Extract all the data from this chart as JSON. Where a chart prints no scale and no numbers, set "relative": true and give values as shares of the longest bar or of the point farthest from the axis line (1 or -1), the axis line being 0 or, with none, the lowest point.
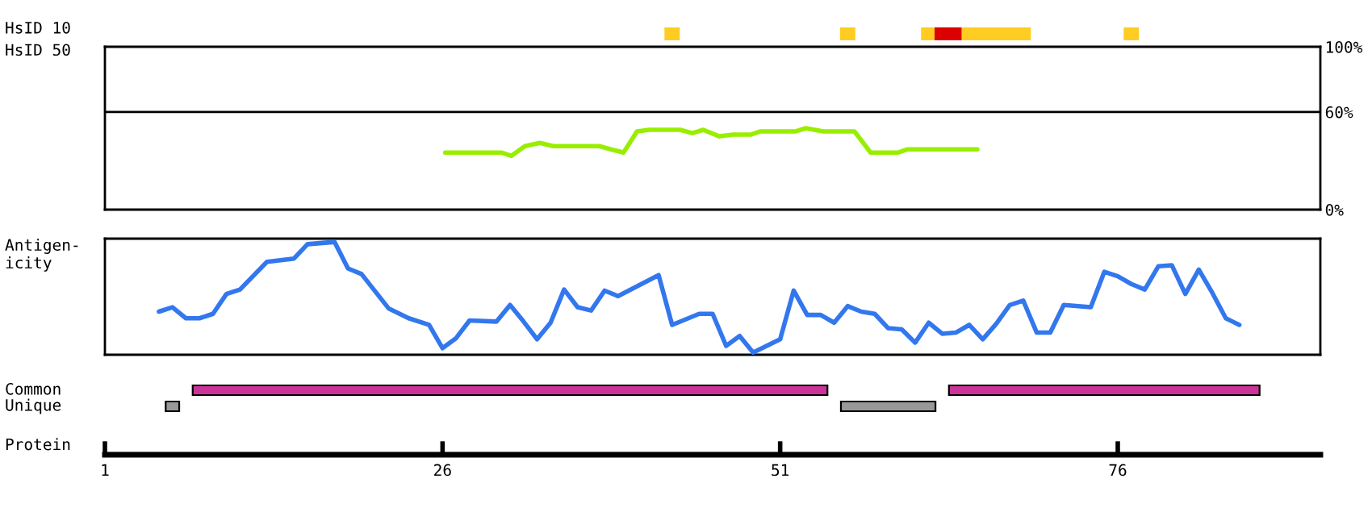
{
  "chart_data": [
    {
      "type": "bar",
      "orientation": "horizontal",
      "categories": [
        "HsID 10"
      ],
      "xlim": [
        1,
        91
      ],
      "tick_labels": false,
      "series": [
        {
          "color": "#ffcc22",
          "base": [
            42.5
          ],
          "values": [
            1
          ]
        },
        {
          "color": "#ffcc22",
          "base": [
            55.5
          ],
          "values": [
            1
          ]
        },
        {
          "color": "#ffcc22",
          "base": [
            61.5
          ],
          "values": [
            1
          ]
        },
        {
          "color": "#dd0000",
          "base": [
            62.5
          ],
          "values": [
            2
          ]
        },
        {
          "color": "#ffcc22",
          "base": [
            64.5
          ],
          "values": [
            5
          ]
        },
        {
          "color": "#ffcc22",
          "base": [
            76.5
          ],
          "values": [
            1
          ]
        }
      ]
    },
    {
      "type": "line",
      "ylabel": "HsID 50",
      "xlim": [
        1,
        91
      ],
      "ylim": [
        0,
        100
      ],
      "yticks": [
        {
          "value": 0,
          "label": "0%"
        },
        {
          "value": 60,
          "label": "60%"
        },
        {
          "value": 100,
          "label": "100%"
        }
      ],
      "tick_labels": "y",
      "ref_lines": [
        {
          "axis": "y",
          "value": 60,
          "label": null,
          "color": "#000000"
        }
      ],
      "series": [
        {
          "color": "#99ee00",
          "x": [
            26.2,
            30.4,
            31.1,
            32.1,
            33.2,
            34.2,
            37.6,
            39.4,
            40.4,
            41.3,
            43.6,
            44.5,
            45.3,
            46.5,
            47.5,
            48.8,
            49.5,
            52.1,
            52.9,
            54.2,
            56.5,
            57.7,
            59.7,
            60.4,
            65.6
          ],
          "values": [
            35,
            35,
            33,
            39,
            41,
            39,
            39,
            35,
            48,
            49,
            49,
            47,
            49,
            45,
            46,
            46,
            48,
            48,
            50,
            48,
            48,
            35,
            35,
            37,
            37
          ]
        }
      ]
    },
    {
      "type": "line",
      "ylabel": "Antigen-\nicity",
      "xlim": [
        1,
        91
      ],
      "relative": true,
      "tick_labels": false,
      "series": [
        {
          "color": "#3377ee",
          "x": [
            5,
            6,
            7,
            8,
            9,
            10,
            11,
            13,
            15,
            16,
            18,
            19,
            20,
            22,
            23.5,
            25,
            26,
            27,
            28,
            30,
            31,
            32,
            33,
            34,
            35,
            36,
            37,
            38,
            39,
            42,
            43,
            45,
            46,
            47,
            48,
            49,
            51,
            52,
            53,
            54,
            55,
            56,
            57,
            58,
            59,
            60,
            61,
            62,
            63,
            64,
            65,
            66,
            67,
            68,
            69,
            70,
            71,
            72,
            74,
            75,
            76,
            77,
            78,
            79,
            80,
            81,
            82,
            83,
            84,
            85
          ],
          "values": [
            0.37,
            0.41,
            0.31,
            0.31,
            0.35,
            0.53,
            0.57,
            0.82,
            0.85,
            0.98,
            1,
            0.76,
            0.71,
            0.4,
            0.31,
            0.25,
            0.04,
            0.13,
            0.29,
            0.28,
            0.43,
            0.28,
            0.12,
            0.27,
            0.57,
            0.41,
            0.38,
            0.56,
            0.51,
            0.7,
            0.25,
            0.35,
            0.35,
            0.06,
            0.15,
            0,
            0.12,
            0.56,
            0.34,
            0.34,
            0.27,
            0.42,
            0.37,
            0.35,
            0.22,
            0.21,
            0.09,
            0.27,
            0.17,
            0.18,
            0.25,
            0.12,
            0.26,
            0.43,
            0.47,
            0.18,
            0.18,
            0.43,
            0.41,
            0.73,
            0.69,
            0.62,
            0.57,
            0.78,
            0.79,
            0.53,
            0.75,
            0.54,
            0.31,
            0.25
          ]
        }
      ]
    },
    {
      "type": "bar",
      "orientation": "horizontal",
      "categories": [
        "Common",
        "Unique"
      ],
      "xlabel": "Protein",
      "xlim": [
        1,
        91
      ],
      "xticks": [
        1,
        26,
        51,
        76
      ],
      "tick_labels": "x",
      "series": [
        {
          "colors": [
            "#cc3399",
            "#999999"
          ],
          "base": [
            7.5,
            5.5
          ],
          "values": [
            47,
            1
          ]
        },
        {
          "colors": [
            "#cc3399",
            "#999999"
          ],
          "base": [
            63.5,
            55.5
          ],
          "values": [
            23,
            7
          ]
        }
      ]
    }
  ]
}
